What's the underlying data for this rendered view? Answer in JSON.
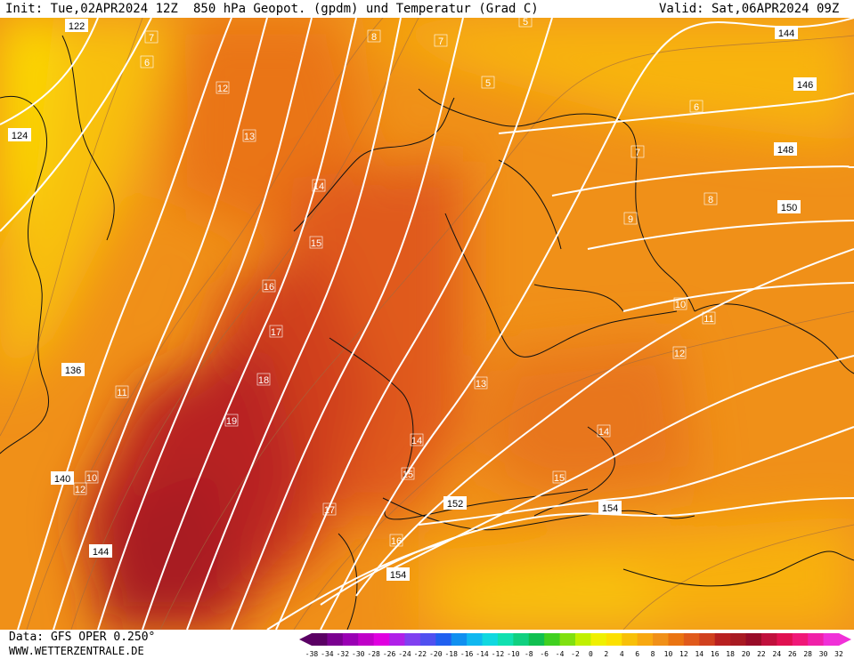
{
  "header": {
    "init": "Init: Tue,02APR2024 12Z",
    "title": "850 hPa Geopot. (gpdm) und Temperatur (Grad C)",
    "valid": "Valid: Sat,06APR2024 09Z"
  },
  "footer": {
    "data_source": "Data: GFS OPER 0.250°",
    "website": "WWW.WETTERZENTRALE.DE"
  },
  "contour_labels": [
    "122",
    "124",
    "136",
    "140",
    "144",
    "144",
    "146",
    "148",
    "150",
    "152",
    "154",
    "154"
  ],
  "isotherm_numbers": [
    "7",
    "6",
    "8",
    "7",
    "5",
    "12",
    "13",
    "14",
    "15",
    "16",
    "17",
    "18",
    "19",
    "11",
    "10",
    "12",
    "14",
    "15",
    "16",
    "17",
    "13",
    "14",
    "15",
    "12",
    "11",
    "10",
    "9",
    "8",
    "7",
    "6",
    "5"
  ],
  "legend": {
    "values": [
      "-38",
      "-34",
      "-32",
      "-30",
      "-28",
      "-26",
      "-24",
      "-22",
      "-20",
      "-18",
      "-16",
      "-14",
      "-12",
      "-10",
      "-8",
      "-6",
      "-4",
      "-2",
      "0",
      "2",
      "4",
      "6",
      "8",
      "10",
      "12",
      "14",
      "16",
      "18",
      "20",
      "22",
      "24",
      "26",
      "28",
      "30",
      "32"
    ],
    "colors": [
      "#5a0064",
      "#7a0090",
      "#9a00b4",
      "#c000c8",
      "#e000e0",
      "#b020e8",
      "#8040f0",
      "#5050f0",
      "#2060f0",
      "#1090f0",
      "#10b8f0",
      "#10d8e0",
      "#10e0b0",
      "#10d080",
      "#10c050",
      "#40d020",
      "#80e010",
      "#c0f000",
      "#f0f000",
      "#fce000",
      "#f8c008",
      "#f8a810",
      "#f09018",
      "#ea7412",
      "#e05a1c",
      "#d0401e",
      "#b82020",
      "#a81a22",
      "#980c28",
      "#c0103c",
      "#e01050",
      "#f01878",
      "#f020a8",
      "#f030d8"
    ],
    "left_arrow_color": "#5a0064",
    "right_arrow_color": "#f030d8"
  }
}
